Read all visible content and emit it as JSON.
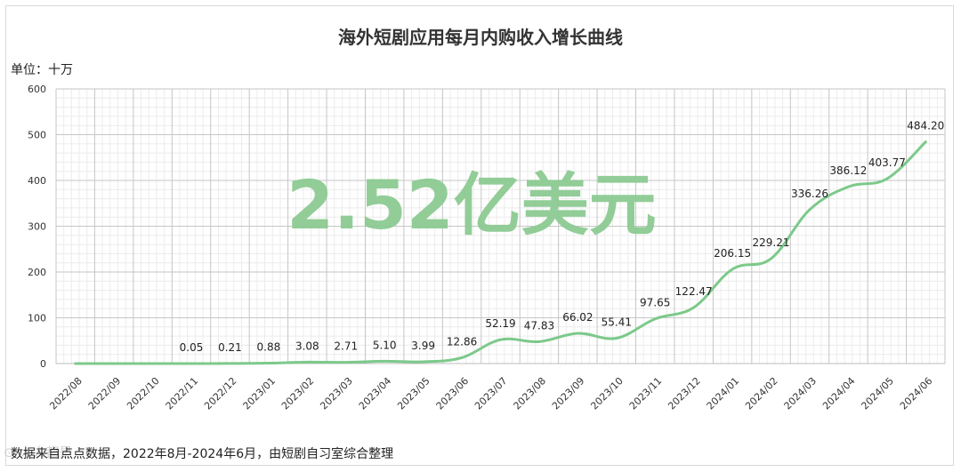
{
  "chart_data": {
    "type": "line",
    "title": "海外短剧应用每月内购收入增长曲线",
    "unit_label": "单位：十万",
    "overlay_text": "2.52亿美元",
    "footer": "数据来自点点数据，2022年8月-2024年6月，由短剧自习室综合整理",
    "categories": [
      "2022/08",
      "2022/09",
      "2022/10",
      "2022/11",
      "2022/12",
      "2023/01",
      "2023/02",
      "2023/03",
      "2023/04",
      "2023/05",
      "2023/06",
      "2023/07",
      "2023/08",
      "2023/09",
      "2023/10",
      "2023/11",
      "2023/12",
      "2024/01",
      "2024/02",
      "2024/03",
      "2024/04",
      "2024/05",
      "2024/06"
    ],
    "series": [
      {
        "values": [
          0,
          0,
          0,
          0.05,
          0.21,
          0.88,
          3.08,
          2.71,
          5.1,
          3.99,
          12.86,
          52.19,
          47.83,
          66.02,
          55.41,
          97.65,
          122.47,
          206.15,
          229.21,
          336.26,
          386.12,
          403.77,
          484.2
        ],
        "labels": [
          "",
          "",
          "",
          "0.05",
          "0.21",
          "0.88",
          "3.08",
          "2.71",
          "5.10",
          "3.99",
          "12.86",
          "52.19",
          "47.83",
          "66.02",
          "55.41",
          "97.65",
          "122.47",
          "206.15",
          "229.21",
          "336.26",
          "386.12",
          "403.77",
          "484.20"
        ]
      }
    ],
    "ylim": [
      0,
      600
    ],
    "yticks": [
      "0",
      "100",
      "200",
      "300",
      "400",
      "500",
      "600"
    ],
    "grid": true,
    "line_color": "#7cc98a",
    "overlay_color": "#8dcb93"
  }
}
